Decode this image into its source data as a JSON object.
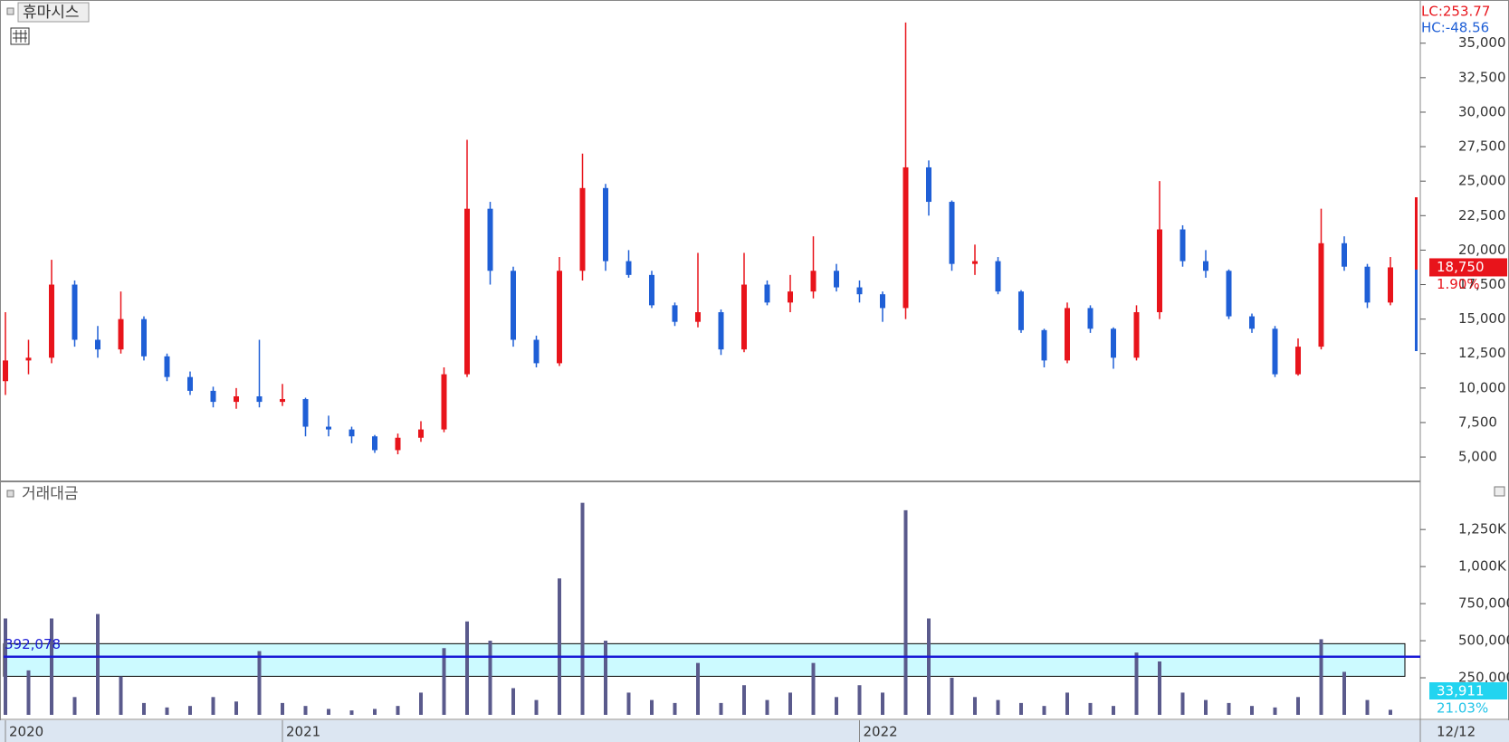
{
  "chart_data": [
    {
      "type": "candlestick",
      "title": "휴마시스",
      "categories": [
        "2020",
        null,
        null,
        null,
        null,
        null,
        null,
        null,
        null,
        null,
        null,
        null,
        "2021",
        null,
        null,
        null,
        null,
        null,
        null,
        null,
        null,
        null,
        null,
        null,
        null,
        null,
        null,
        null,
        null,
        null,
        null,
        null,
        null,
        null,
        null,
        null,
        null,
        "2022",
        null,
        null,
        null,
        null,
        null,
        null,
        null,
        null,
        null,
        null,
        null,
        null,
        null,
        null,
        null,
        null,
        null,
        null,
        null,
        null,
        null,
        null,
        "12/12"
      ],
      "open": [
        10500,
        12000,
        12200,
        17500,
        13500,
        12800,
        15000,
        12300,
        10800,
        9800,
        9000,
        9400,
        9000,
        9200,
        7200,
        7000,
        6500,
        5500,
        6400,
        7000,
        11000,
        23000,
        18500,
        13500,
        11800,
        18500,
        24500,
        19200,
        18200,
        16000,
        14800,
        15500,
        12800,
        17500,
        16200,
        17000,
        18500,
        17300,
        16800,
        15800,
        26000,
        23500,
        19000,
        19200,
        17000,
        14200,
        12000,
        15800,
        14300,
        12200,
        15500,
        21500,
        19200,
        18500,
        15200,
        14300,
        11000,
        13000,
        20500,
        18800,
        16200
      ],
      "high": [
        15500,
        13500,
        19300,
        17800,
        14500,
        17000,
        15200,
        12500,
        11200,
        10100,
        10000,
        13500,
        10300,
        9300,
        8000,
        7200,
        6600,
        6700,
        7600,
        11500,
        28000,
        23500,
        18800,
        13800,
        19500,
        27000,
        24800,
        20000,
        18500,
        16200,
        19800,
        15700,
        19800,
        17800,
        18200,
        21000,
        19000,
        17800,
        17000,
        36500,
        26500,
        23600,
        20400,
        19500,
        17100,
        14300,
        16200,
        16000,
        14400,
        16000,
        25000,
        21800,
        20000,
        18600,
        15400,
        14500,
        13600,
        23000,
        21000,
        19000,
        19500
      ],
      "low": [
        9500,
        11000,
        11800,
        13000,
        12200,
        12500,
        12000,
        10500,
        9500,
        8600,
        8500,
        8600,
        8700,
        6500,
        6500,
        6000,
        5300,
        5200,
        6100,
        6800,
        10800,
        17500,
        13000,
        11500,
        11600,
        17800,
        18500,
        18000,
        15800,
        14500,
        14400,
        12400,
        12600,
        16000,
        15500,
        16500,
        17000,
        16200,
        14800,
        15000,
        22500,
        18500,
        18200,
        16800,
        14000,
        11500,
        11800,
        14000,
        11400,
        12000,
        15000,
        18800,
        18000,
        15000,
        14000,
        10800,
        10900,
        12800,
        18500,
        15800,
        16000
      ],
      "close": [
        12000,
        12200,
        17500,
        13500,
        12800,
        15000,
        12300,
        10800,
        9800,
        9000,
        9400,
        9000,
        9200,
        7200,
        7000,
        6500,
        5500,
        6400,
        7000,
        11000,
        23000,
        18500,
        13500,
        11800,
        18500,
        24500,
        19200,
        18200,
        16000,
        14800,
        15500,
        12800,
        17500,
        16200,
        17000,
        18500,
        17300,
        16800,
        15800,
        26000,
        23500,
        19000,
        19200,
        17000,
        14200,
        12000,
        15800,
        14300,
        12200,
        15500,
        21500,
        19200,
        18500,
        15200,
        14300,
        11000,
        13000,
        20500,
        18800,
        16200,
        18750
      ],
      "up_color": "#e8141b",
      "down_color": "#1f5fd6",
      "ylim": [
        3300,
        38000
      ],
      "yticks": [
        {
          "value": 5000,
          "label": "5,000"
        },
        {
          "value": 7500,
          "label": "7,500"
        },
        {
          "value": 10000,
          "label": "10,000"
        },
        {
          "value": 12500,
          "label": "12,500"
        },
        {
          "value": 15000,
          "label": "15,000"
        },
        {
          "value": 17500,
          "label": "17,500"
        },
        {
          "value": 20000,
          "label": "20,000"
        },
        {
          "value": 22500,
          "label": "22,500"
        },
        {
          "value": 25000,
          "label": "25,000"
        },
        {
          "value": 27500,
          "label": "27,500"
        },
        {
          "value": 30000,
          "label": "30,000"
        },
        {
          "value": 32500,
          "label": "32,500"
        },
        {
          "value": 35000,
          "label": "35,000"
        }
      ],
      "last_price": 18750,
      "last_price_label": "18,750",
      "change_label": "1.90%",
      "lc_label": "LC:253.77",
      "hc_label": "HC:-48.56"
    },
    {
      "type": "bar",
      "title": "거래대금",
      "values": [
        650000,
        300000,
        650000,
        120000,
        680000,
        260000,
        80000,
        50000,
        60000,
        120000,
        90000,
        430000,
        80000,
        60000,
        40000,
        30000,
        40000,
        60000,
        150000,
        450000,
        630000,
        500000,
        180000,
        100000,
        920000,
        1430000,
        500000,
        150000,
        100000,
        80000,
        350000,
        80000,
        200000,
        100000,
        150000,
        350000,
        120000,
        200000,
        150000,
        1380000,
        650000,
        250000,
        120000,
        100000,
        80000,
        60000,
        150000,
        80000,
        60000,
        420000,
        360000,
        150000,
        100000,
        80000,
        60000,
        50000,
        120000,
        510000,
        290000,
        100000,
        33911
      ],
      "color": "#5a5a8c",
      "ylim": [
        0,
        1550000
      ],
      "yticks": [
        {
          "value": 250000,
          "label": "250,000"
        },
        {
          "value": 500000,
          "label": "500,000"
        },
        {
          "value": 750000,
          "label": "750,000"
        },
        {
          "value": 1000000,
          "label": "1,000K"
        },
        {
          "value": 1250000,
          "label": "1,250K"
        }
      ],
      "average": 392078,
      "average_label": "392,078",
      "band": [
        260000,
        480000
      ],
      "last_label": "33,911",
      "ratio_label": "21.03%"
    }
  ]
}
